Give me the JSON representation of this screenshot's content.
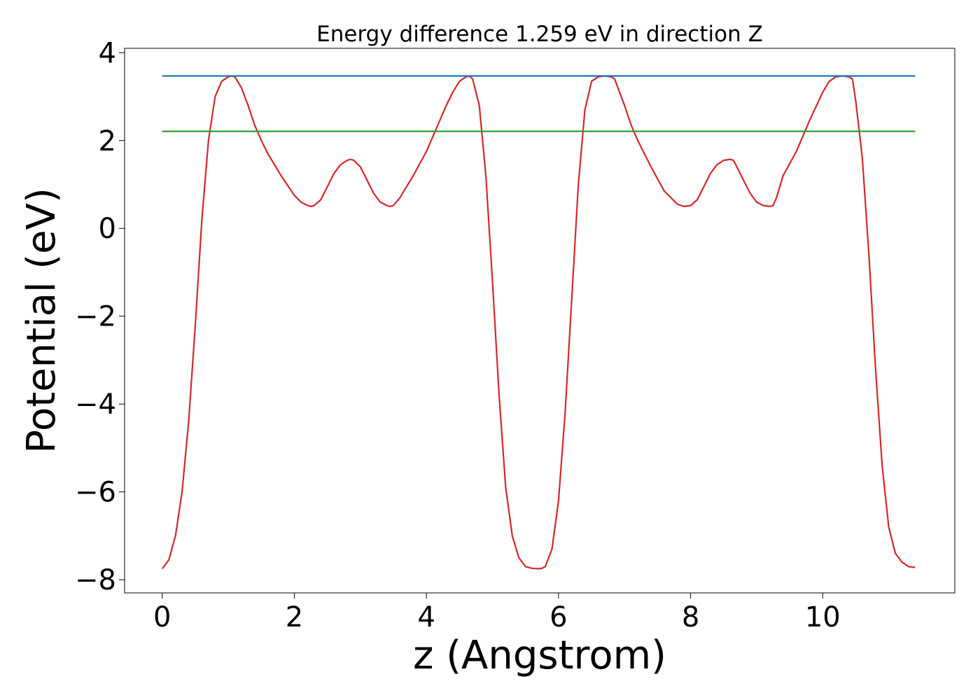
{
  "chart_data": {
    "type": "line",
    "title": "Energy difference 1.259 eV in direction Z",
    "xlabel": "z (Angstrom)",
    "ylabel": "Potential (eV)",
    "xlim": [
      -0.57,
      12.0
    ],
    "ylim": [
      -8.3,
      4.1
    ],
    "xticks": [
      0,
      2,
      4,
      6,
      8,
      10
    ],
    "xtick_labels": [
      "0",
      "2",
      "4",
      "6",
      "8",
      "10"
    ],
    "yticks": [
      4,
      2,
      0,
      -2,
      -4,
      -6,
      -8
    ],
    "ytick_labels": [
      "4",
      "2",
      "0",
      "−2",
      "−4",
      "−6",
      "−8"
    ],
    "grid": false,
    "series": [
      {
        "color": "#d62728",
        "x": [
          0.0,
          0.1,
          0.2,
          0.3,
          0.4,
          0.5,
          0.6,
          0.7,
          0.8,
          0.9,
          1.0,
          1.05,
          1.1,
          1.2,
          1.3,
          1.4,
          1.5,
          1.6,
          1.8,
          2.0,
          2.1,
          2.2,
          2.25,
          2.3,
          2.4,
          2.5,
          2.6,
          2.7,
          2.8,
          2.85,
          2.9,
          3.0,
          3.1,
          3.2,
          3.3,
          3.4,
          3.45,
          3.5,
          3.6,
          3.8,
          4.0,
          4.1,
          4.2,
          4.3,
          4.4,
          4.5,
          4.6,
          4.65,
          4.7,
          4.8,
          4.9,
          5.0,
          5.1,
          5.2,
          5.3,
          5.4,
          5.5,
          5.6,
          5.7,
          5.75,
          5.8,
          5.9,
          6.0,
          6.1,
          6.2,
          6.3,
          6.4,
          6.5,
          6.6,
          6.7,
          6.8,
          6.85,
          6.9,
          7.0,
          7.1,
          7.2,
          7.4,
          7.6,
          7.8,
          7.9,
          8.0,
          8.1,
          8.2,
          8.3,
          8.4,
          8.5,
          8.6,
          8.65,
          8.7,
          8.8,
          8.9,
          9.0,
          9.1,
          9.2,
          9.25,
          9.3,
          9.4,
          9.6,
          9.8,
          10.0,
          10.1,
          10.2,
          10.3,
          10.4,
          10.45,
          10.5,
          10.6,
          10.7,
          10.8,
          10.9,
          11.0,
          11.1,
          11.2,
          11.3,
          11.4
        ],
        "y": [
          -7.75,
          -7.55,
          -7.0,
          -6.0,
          -4.4,
          -2.2,
          0.2,
          2.0,
          3.0,
          3.35,
          3.45,
          3.47,
          3.45,
          3.2,
          2.8,
          2.35,
          2.0,
          1.7,
          1.2,
          0.75,
          0.6,
          0.52,
          0.5,
          0.52,
          0.65,
          0.95,
          1.25,
          1.45,
          1.55,
          1.57,
          1.55,
          1.4,
          1.1,
          0.8,
          0.6,
          0.52,
          0.5,
          0.52,
          0.7,
          1.2,
          1.75,
          2.1,
          2.45,
          2.8,
          3.1,
          3.35,
          3.45,
          3.47,
          3.4,
          2.8,
          1.2,
          -1.2,
          -3.8,
          -5.9,
          -7.0,
          -7.5,
          -7.7,
          -7.74,
          -7.75,
          -7.74,
          -7.7,
          -7.3,
          -6.2,
          -4.2,
          -1.6,
          1.0,
          2.7,
          3.35,
          3.45,
          3.47,
          3.45,
          3.4,
          3.2,
          2.8,
          2.35,
          2.0,
          1.4,
          0.85,
          0.55,
          0.5,
          0.52,
          0.65,
          0.95,
          1.25,
          1.45,
          1.55,
          1.57,
          1.55,
          1.4,
          1.1,
          0.8,
          0.6,
          0.52,
          0.5,
          0.52,
          0.7,
          1.2,
          1.75,
          2.45,
          3.1,
          3.35,
          3.45,
          3.47,
          3.45,
          3.4,
          2.9,
          1.6,
          -0.6,
          -3.2,
          -5.4,
          -6.8,
          -7.4,
          -7.6,
          -7.7,
          -7.72
        ]
      },
      {
        "color": "#1f77b4",
        "x": [
          0.0,
          11.4
        ],
        "y": [
          3.47,
          3.47
        ]
      },
      {
        "color": "#2ca02c",
        "x": [
          0.0,
          11.4
        ],
        "y": [
          2.21,
          2.21
        ]
      }
    ]
  }
}
